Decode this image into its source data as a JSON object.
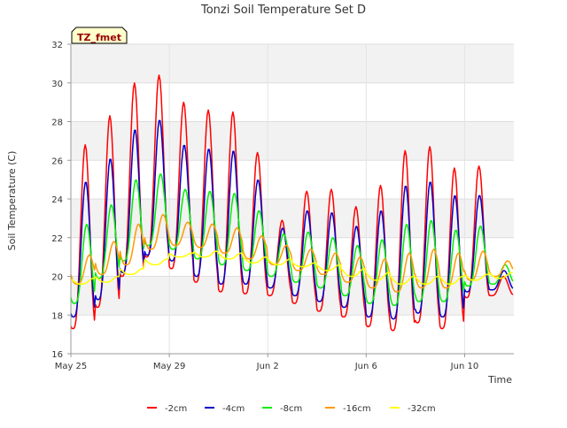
{
  "chart_data": {
    "type": "line",
    "title": "Tonzi Soil Temperature Set D",
    "badge": "TZ_fmet",
    "xlabel": "Time",
    "ylabel": "Soil Temperature (C)",
    "xlim": [
      "2018-05-25",
      "2018-06-12"
    ],
    "ylim": [
      16,
      32
    ],
    "yticks": [
      16,
      18,
      20,
      22,
      24,
      26,
      28,
      30,
      32
    ],
    "xticks": [
      {
        "date": "2018-05-25",
        "label": "May 25"
      },
      {
        "date": "2018-05-29",
        "label": "May 29"
      },
      {
        "date": "2018-06-02",
        "label": "Jun 2"
      },
      {
        "date": "2018-06-06",
        "label": "Jun 6"
      },
      {
        "date": "2018-06-10",
        "label": "Jun 10"
      }
    ],
    "grid": true,
    "legend_position": "bottom",
    "x_dates": [
      "2018-05-25",
      "2018-05-26",
      "2018-05-27",
      "2018-05-28",
      "2018-05-29",
      "2018-05-30",
      "2018-05-31",
      "2018-06-01",
      "2018-06-02",
      "2018-06-03",
      "2018-06-04",
      "2018-06-05",
      "2018-06-06",
      "2018-06-07",
      "2018-06-08",
      "2018-06-09",
      "2018-06-10",
      "2018-06-11"
    ],
    "series": [
      {
        "name": "-2cm",
        "color": "#ff0000",
        "daily_min": [
          17.3,
          18.4,
          20.0,
          21.0,
          20.4,
          19.7,
          19.2,
          19.1,
          19.0,
          18.6,
          18.2,
          17.9,
          17.4,
          17.2,
          17.6,
          17.3,
          18.9,
          19.0
        ],
        "daily_max": [
          26.8,
          28.3,
          30.0,
          30.4,
          29.0,
          28.6,
          28.5,
          26.4,
          22.9,
          24.4,
          24.5,
          23.6,
          24.7,
          26.5,
          26.7,
          25.6,
          25.7,
          20.0
        ]
      },
      {
        "name": "-4cm",
        "color": "#0000cc",
        "daily_min": [
          17.9,
          18.8,
          20.2,
          21.1,
          20.8,
          20.0,
          19.6,
          19.6,
          19.4,
          19.0,
          18.7,
          18.4,
          17.9,
          17.8,
          18.1,
          17.9,
          19.2,
          19.3
        ],
        "daily_max": [
          24.9,
          26.1,
          27.6,
          28.1,
          26.8,
          26.6,
          26.5,
          25.0,
          22.5,
          23.4,
          23.3,
          22.6,
          23.4,
          24.7,
          24.9,
          24.2,
          24.2,
          20.3
        ]
      },
      {
        "name": "-8cm",
        "color": "#00ee00",
        "daily_min": [
          18.6,
          19.9,
          20.8,
          21.6,
          21.4,
          20.9,
          20.6,
          20.3,
          20.0,
          19.7,
          19.4,
          19.0,
          18.6,
          18.5,
          18.7,
          18.7,
          19.5,
          19.6
        ],
        "daily_max": [
          22.7,
          23.7,
          25.0,
          25.3,
          24.5,
          24.4,
          24.3,
          23.4,
          22.2,
          22.3,
          22.0,
          21.6,
          21.9,
          22.7,
          22.9,
          22.4,
          22.6,
          20.6
        ]
      },
      {
        "name": "-16cm",
        "color": "#ff9900",
        "daily_min": [
          19.6,
          20.1,
          20.6,
          21.4,
          21.6,
          21.5,
          21.2,
          20.9,
          20.6,
          20.3,
          20.1,
          19.7,
          19.4,
          19.2,
          19.4,
          19.4,
          19.8,
          20.0
        ],
        "daily_max": [
          21.1,
          21.8,
          22.7,
          23.2,
          22.8,
          22.7,
          22.5,
          22.1,
          21.6,
          21.4,
          21.2,
          21.0,
          20.9,
          21.2,
          21.4,
          21.2,
          21.3,
          20.8
        ]
      },
      {
        "name": "-32cm",
        "color": "#ffff00",
        "daily_min": [
          19.6,
          19.7,
          20.1,
          20.6,
          21.0,
          21.0,
          20.9,
          20.7,
          20.6,
          20.5,
          20.3,
          20.0,
          19.8,
          19.6,
          19.6,
          19.6,
          19.8,
          19.9
        ],
        "daily_max": [
          19.9,
          20.0,
          20.4,
          20.9,
          21.2,
          21.3,
          21.2,
          21.0,
          20.9,
          20.7,
          20.6,
          20.4,
          20.2,
          20.0,
          20.0,
          20.0,
          20.1,
          20.2
        ]
      }
    ]
  }
}
